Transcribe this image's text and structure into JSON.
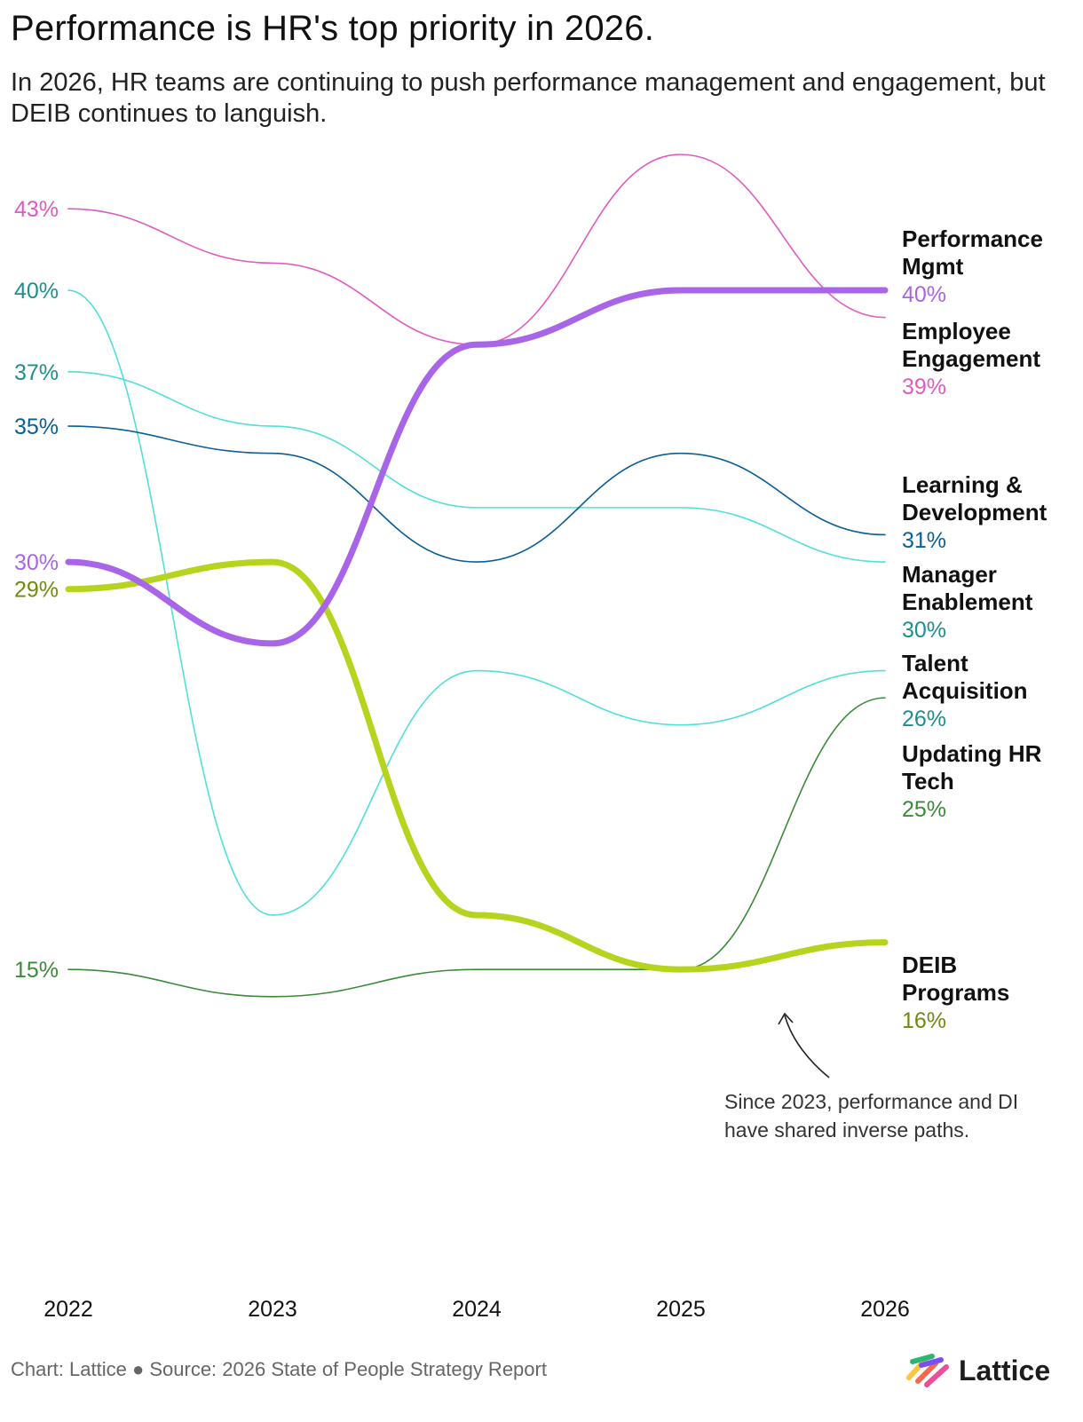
{
  "title": "Performance is HR's top priority in 2026.",
  "subtitle": "In 2026, HR teams are continuing to push performance management and engagement, but DEIB continues to languish.",
  "footer": "Chart: Lattice ● Source: 2026 State of People Strategy Report",
  "logo": {
    "text": "Lattice",
    "colors": [
      "#f9c642",
      "#f56a4e",
      "#e94f9a",
      "#7d4ff0",
      "#2bb673"
    ]
  },
  "annotation": {
    "lines": [
      "Since 2023, performance and DI",
      "have shared inverse paths."
    ]
  },
  "chart_data": {
    "type": "line",
    "x": [
      "2022",
      "2023",
      "2024",
      "2025",
      "2026"
    ],
    "ylim": [
      12,
      45
    ],
    "grid": false,
    "legend": "right",
    "series": [
      {
        "name_lines": [
          "Employee",
          "Engagement"
        ],
        "label": "39%",
        "start_label": "43%",
        "values": [
          43,
          41,
          38,
          45,
          39
        ],
        "color": "#e05bbf",
        "width": 1.6
      },
      {
        "name_lines": [
          "Talent",
          "Acquisition"
        ],
        "label": "26%",
        "start_label": "40%",
        "values": [
          40,
          17,
          26,
          24,
          26
        ],
        "color": "#4fe0d8",
        "width": 1.6
      },
      {
        "name_lines": [
          "Manager",
          "Enablement"
        ],
        "label": "30%",
        "start_label": "37%",
        "values": [
          37,
          35,
          32,
          32,
          30
        ],
        "color": "#4fe0d8",
        "width": 1.6
      },
      {
        "name_lines": [
          "Learning &",
          "Development"
        ],
        "label": "31%",
        "start_label": "35%",
        "values": [
          35,
          34,
          30,
          34,
          31
        ],
        "color": "#0a5f96",
        "width": 1.6
      },
      {
        "name_lines": [
          "Updating HR",
          "Tech"
        ],
        "label": "25%",
        "start_label": "15%",
        "values": [
          15,
          14,
          15,
          15,
          25
        ],
        "color": "#3b8a3a",
        "width": 1.6
      },
      {
        "name_lines": [
          "DEIB",
          "Programs"
        ],
        "label": "16%",
        "start_label": "29%",
        "values": [
          29,
          30,
          17,
          15,
          16
        ],
        "color": "#b6d31e",
        "width": 7
      },
      {
        "name_lines": [
          "Performance",
          "Mgmt"
        ],
        "label": "40%",
        "start_label": "30%",
        "values": [
          30,
          27,
          38,
          40,
          40
        ],
        "color": "#a865e8",
        "width": 7
      }
    ]
  }
}
